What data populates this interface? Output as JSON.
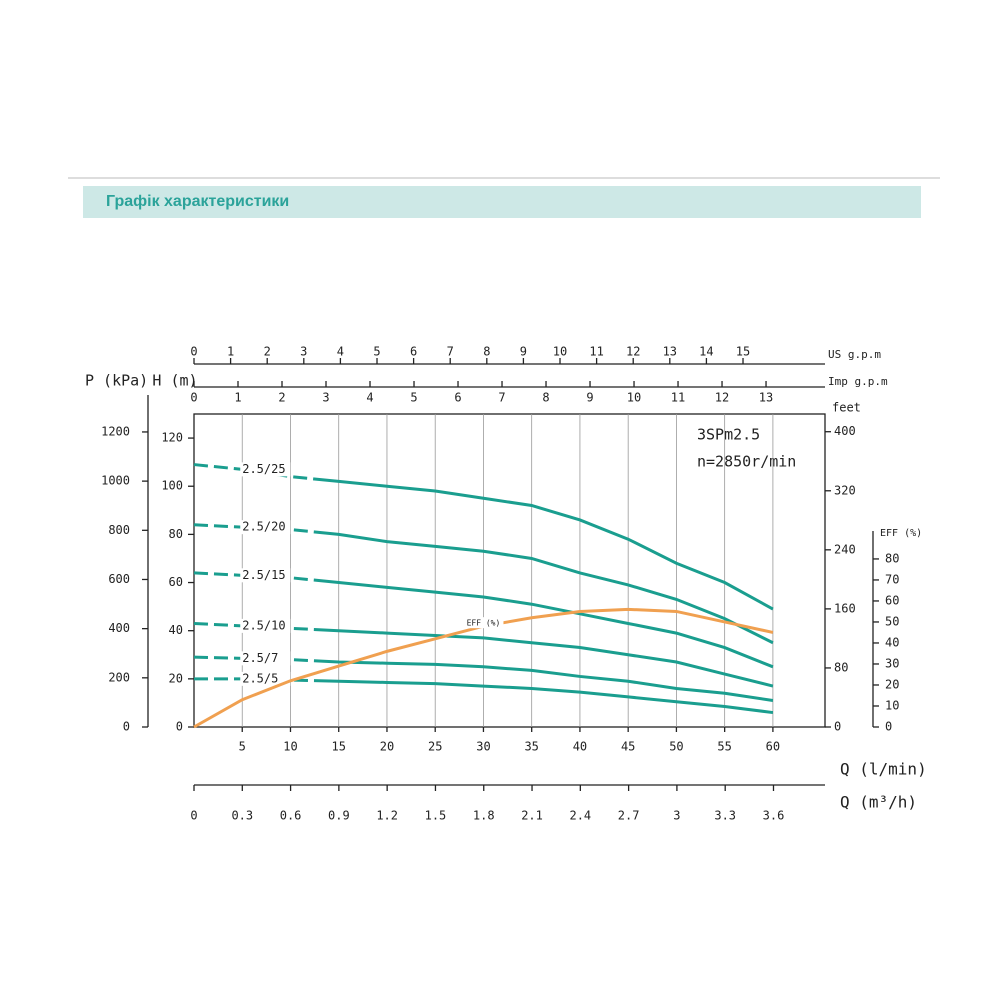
{
  "header": {
    "title": "Графік характеристики"
  },
  "chart_data": {
    "type": "line",
    "annotations": [
      "3SPm2.5",
      "n=2850r/min"
    ],
    "xlabel": "Q (l/min)",
    "ylabel": "H (m)",
    "x": [
      0,
      5,
      10,
      15,
      20,
      25,
      30,
      35,
      40,
      45,
      50,
      55,
      60
    ],
    "xlim": [
      0,
      65.4
    ],
    "xticks": [
      5,
      10,
      15,
      20,
      25,
      30,
      35,
      40,
      45,
      50,
      55,
      60
    ],
    "ylim": [
      0,
      130
    ],
    "yticks": [
      0,
      20,
      40,
      60,
      80,
      100,
      120
    ],
    "grid": "x",
    "dash_to": 13,
    "p_axis": {
      "label": "P (kPa)",
      "lim": [
        0,
        1273
      ],
      "ticks": [
        0,
        200,
        400,
        600,
        800,
        1000,
        1200
      ]
    },
    "feet_axis": {
      "label": "feet",
      "lim": [
        0,
        424
      ],
      "ticks": [
        0,
        80,
        160,
        240,
        320,
        400
      ]
    },
    "eff_axis": {
      "label": "EFF (%)",
      "lim": [
        0,
        149
      ],
      "ticks": [
        0,
        10,
        20,
        30,
        40,
        50,
        60,
        70,
        80
      ]
    },
    "usgpm_axis": {
      "label": "US g.p.m",
      "lim": [
        0,
        17.24
      ],
      "ticks": [
        0,
        1,
        2,
        3,
        4,
        5,
        6,
        7,
        8,
        9,
        10,
        11,
        12,
        13,
        14,
        15
      ]
    },
    "imp_axis": {
      "label": "Imp g.p.m",
      "lim": [
        0,
        14.34
      ],
      "ticks": [
        0,
        1,
        2,
        3,
        4,
        5,
        6,
        7,
        8,
        9,
        10,
        11,
        12,
        13
      ]
    },
    "m3h_axis": {
      "label": "Q (m³/h)",
      "lim": [
        0,
        3.92
      ],
      "ticks": [
        0,
        0.3,
        0.6,
        0.9,
        1.2,
        1.5,
        1.8,
        2.1,
        2.4,
        2.7,
        3,
        3.3,
        3.6
      ]
    },
    "series": [
      {
        "name": "2.5/25",
        "color": "#1a9e8f",
        "values": [
          109,
          107,
          104,
          102,
          100,
          98,
          95,
          92,
          86,
          78,
          68,
          60,
          49
        ]
      },
      {
        "name": "2.5/20",
        "color": "#1a9e8f",
        "values": [
          84,
          83,
          82,
          80,
          77,
          75,
          73,
          70,
          64,
          59,
          53,
          45,
          35
        ]
      },
      {
        "name": "2.5/15",
        "color": "#1a9e8f",
        "values": [
          64,
          63,
          62,
          60,
          58,
          56,
          54,
          51,
          47,
          43,
          39,
          33,
          25
        ]
      },
      {
        "name": "2.5/10",
        "color": "#1a9e8f",
        "values": [
          43,
          42,
          41,
          40,
          39,
          38,
          37,
          35,
          33,
          30,
          27,
          22,
          17
        ]
      },
      {
        "name": "2.5/7",
        "color": "#1a9e8f",
        "values": [
          29,
          28.5,
          28,
          27,
          26.5,
          26,
          25,
          23.5,
          21,
          19,
          16,
          14,
          11
        ]
      },
      {
        "name": "2.5/5",
        "color": "#1a9e8f",
        "values": [
          20,
          20,
          19.5,
          19,
          18.5,
          18,
          17,
          16,
          14.5,
          12.5,
          10.5,
          8.5,
          6
        ]
      },
      {
        "name": "EFF (%)",
        "color": "#f0a050",
        "axis": "eff",
        "values": [
          0,
          13,
          22,
          29,
          36,
          42,
          48,
          52,
          55,
          56,
          55,
          50,
          45
        ]
      }
    ]
  }
}
